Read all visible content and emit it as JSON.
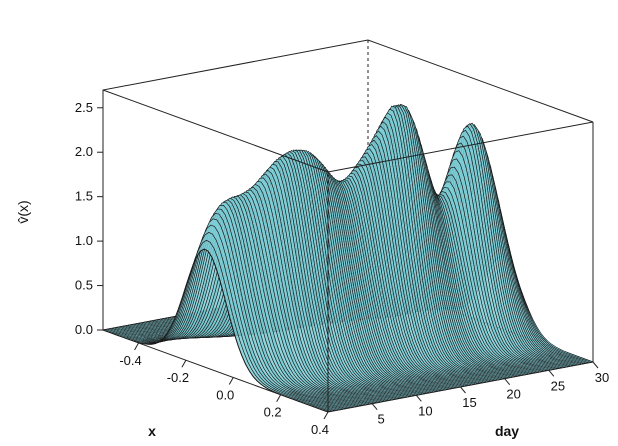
{
  "chart_data": {
    "type": "surface",
    "title": "",
    "ylabel": "v̂(x)",
    "xlabel": "x",
    "dlabel": "day",
    "zlim": [
      0,
      2.7
    ],
    "xlim": [
      -0.55,
      0.4
    ],
    "daylim": [
      0,
      30
    ],
    "z_ticks": [
      {
        "value": 0.0,
        "label": "0.0"
      },
      {
        "value": 0.5,
        "label": "0.5"
      },
      {
        "value": 1.0,
        "label": "1.0"
      },
      {
        "value": 1.5,
        "label": "1.5"
      },
      {
        "value": 2.0,
        "label": "2.0"
      },
      {
        "value": 2.5,
        "label": "2.5"
      }
    ],
    "x_ticks": [
      {
        "value": -0.4,
        "label": "-0.4"
      },
      {
        "value": -0.2,
        "label": "-0.2"
      },
      {
        "value": 0.0,
        "label": "0.0"
      },
      {
        "value": 0.2,
        "label": "0.2"
      },
      {
        "value": 0.4,
        "label": "0.4"
      }
    ],
    "day_ticks": [
      {
        "value": 5,
        "label": "5"
      },
      {
        "value": 10,
        "label": "10"
      },
      {
        "value": 15,
        "label": "15"
      },
      {
        "value": 20,
        "label": "20"
      },
      {
        "value": 25,
        "label": "25"
      },
      {
        "value": 30,
        "label": "30"
      }
    ],
    "surface_color": "#7ccdd6",
    "edge_color": "#1a1a1a",
    "peaks": [
      {
        "day": 1.5,
        "x": -0.12,
        "height": 1.55,
        "width": 0.085
      },
      {
        "day": 6.0,
        "x": -0.05,
        "height": 1.65,
        "width": 0.085
      },
      {
        "day": 10.0,
        "x": -0.02,
        "height": 1.7,
        "width": 0.085
      },
      {
        "day": 15.0,
        "x": -0.02,
        "height": 1.55,
        "width": 0.085
      },
      {
        "day": 19.5,
        "x": 0.0,
        "height": 2.4,
        "width": 0.08
      },
      {
        "day": 26.5,
        "x": 0.02,
        "height": 2.35,
        "width": 0.08
      }
    ]
  }
}
